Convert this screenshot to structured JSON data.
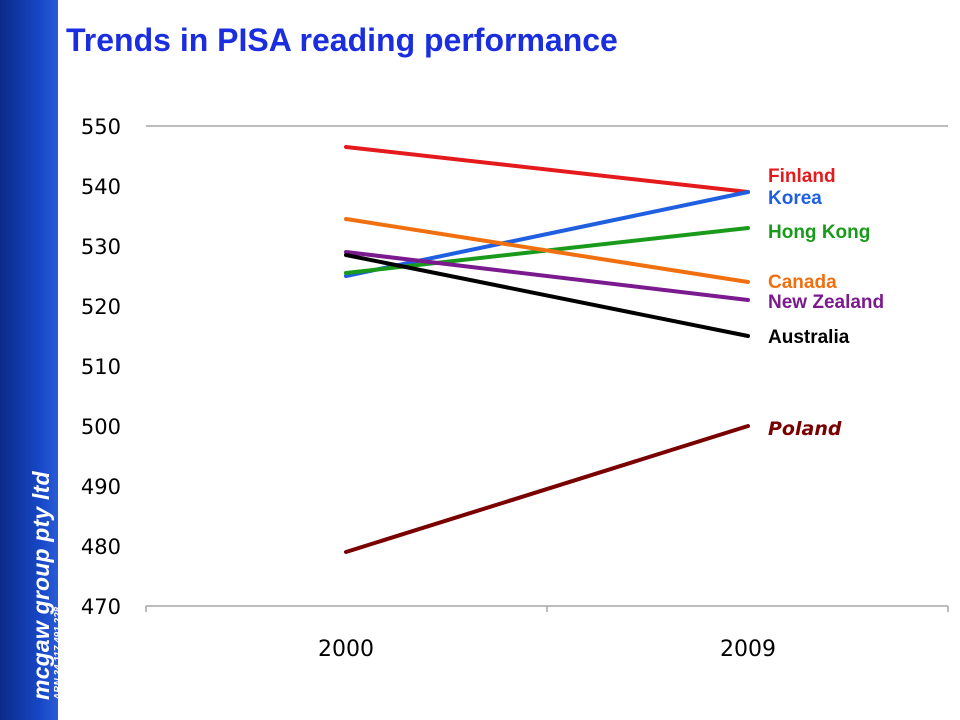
{
  "title": "Trends in PISA reading performance",
  "brand": {
    "name": "mcgaw group pty ltd",
    "abn": "ABN 34 117 491 228"
  },
  "chart_data": {
    "type": "line",
    "title": "Trends in PISA reading performance",
    "xlabel": "",
    "ylabel": "",
    "x": [
      "2000",
      "2009"
    ],
    "ylim": [
      470,
      550
    ],
    "yticks": [
      550,
      540,
      530,
      520,
      510,
      500,
      490,
      480,
      470
    ],
    "grid": false,
    "legend": "direct labels at right end of lines",
    "series": [
      {
        "name": "Finland",
        "values": [
          546.5,
          539
        ],
        "color": "#e41a1c"
      },
      {
        "name": "Korea",
        "values": [
          525,
          539
        ],
        "color": "#1f5fe0"
      },
      {
        "name": "Hong Kong",
        "values": [
          525.5,
          533
        ],
        "color": "#1a9a1a"
      },
      {
        "name": "Canada",
        "values": [
          534.5,
          524
        ],
        "color": "#f07010"
      },
      {
        "name": "New Zealand",
        "values": [
          529,
          521
        ],
        "color": "#7b1a8e"
      },
      {
        "name": "Australia",
        "values": [
          528.5,
          515
        ],
        "color": "#000000"
      },
      {
        "name": "Poland",
        "values": [
          479,
          500
        ],
        "color": "#7a0000"
      }
    ]
  }
}
